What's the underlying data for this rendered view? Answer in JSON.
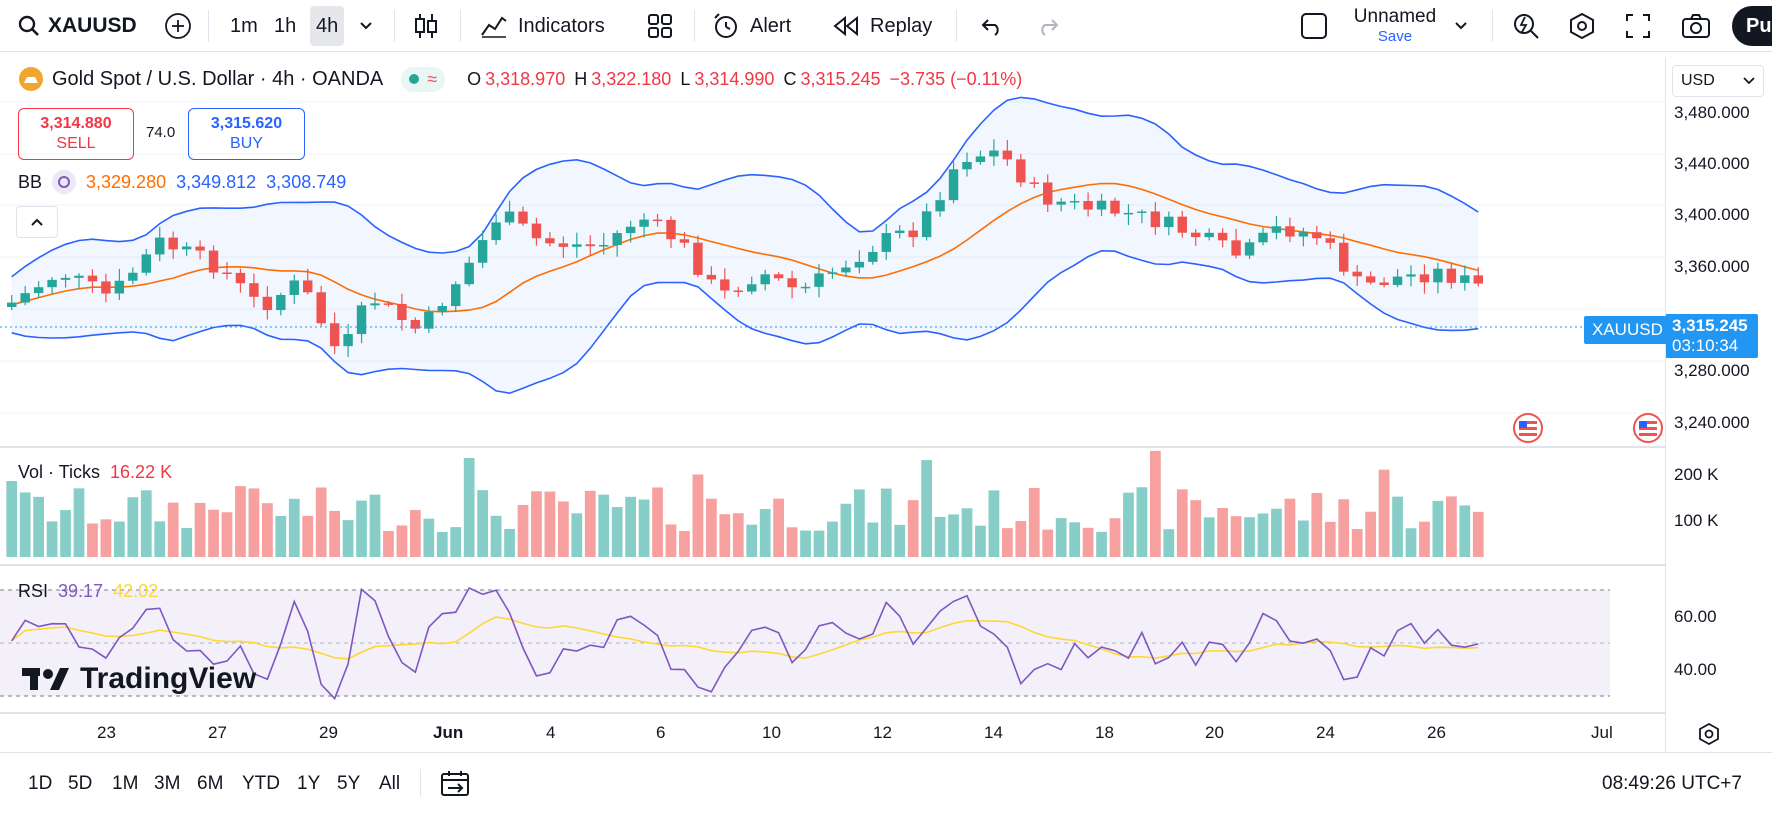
{
  "toolbar": {
    "symbol": "XAUUSD",
    "intervals": [
      "1m",
      "1h",
      "4h"
    ],
    "active_interval": "4h",
    "indicators_label": "Indicators",
    "alert_label": "Alert",
    "replay_label": "Replay",
    "layout_name": "Unnamed",
    "save_label": "Save",
    "publish_label": "Pu"
  },
  "legend": {
    "title": "Gold Spot / U.S. Dollar · 4h · OANDA",
    "o_label": "O",
    "open": "3,318.970",
    "h_label": "H",
    "high": "3,322.180",
    "l_label": "L",
    "low": "3,314.990",
    "c_label": "C",
    "close": "3,315.245",
    "change": "−3.735 (−0.11%)"
  },
  "trade": {
    "sell_price": "3,314.880",
    "sell_label": "SELL",
    "spread": "74.0",
    "buy_price": "3,315.620",
    "buy_label": "BUY"
  },
  "bb": {
    "label": "BB",
    "basis": "3,329.280",
    "upper": "3,349.812",
    "lower": "3,308.749"
  },
  "volume": {
    "label": "Vol · Ticks",
    "value": "16.22 K"
  },
  "rsi": {
    "label": "RSI",
    "value": "39.17",
    "ma": "42.02"
  },
  "watermark": "TradingView",
  "currency": "USD",
  "price_scale": [
    "3,480.000",
    "3,440.000",
    "3,400.000",
    "3,360.000",
    "3,280.000",
    "3,240.000"
  ],
  "last_price_badge": {
    "symbol": "XAUUSD",
    "price": "3,315.245",
    "countdown": "03:10:34"
  },
  "volume_scale": [
    "200 K",
    "100 K"
  ],
  "rsi_scale": [
    "60.00",
    "40.00"
  ],
  "time_axis": [
    "23",
    "27",
    "29",
    "Jun",
    "4",
    "6",
    "10",
    "12",
    "14",
    "18",
    "20",
    "24",
    "26",
    "Jul"
  ],
  "ranges": [
    "1D",
    "5D",
    "1M",
    "3M",
    "6M",
    "YTD",
    "1Y",
    "5Y",
    "All"
  ],
  "clock": "08:49:26 UTC+7",
  "colors": {
    "up": "#26a69a",
    "down": "#ef5350",
    "bb": "#2962ff",
    "basis": "#ff6d00",
    "rsi": "#7e57c2",
    "rsi_ma": "#fdd835",
    "accent": "#2196f3"
  }
}
